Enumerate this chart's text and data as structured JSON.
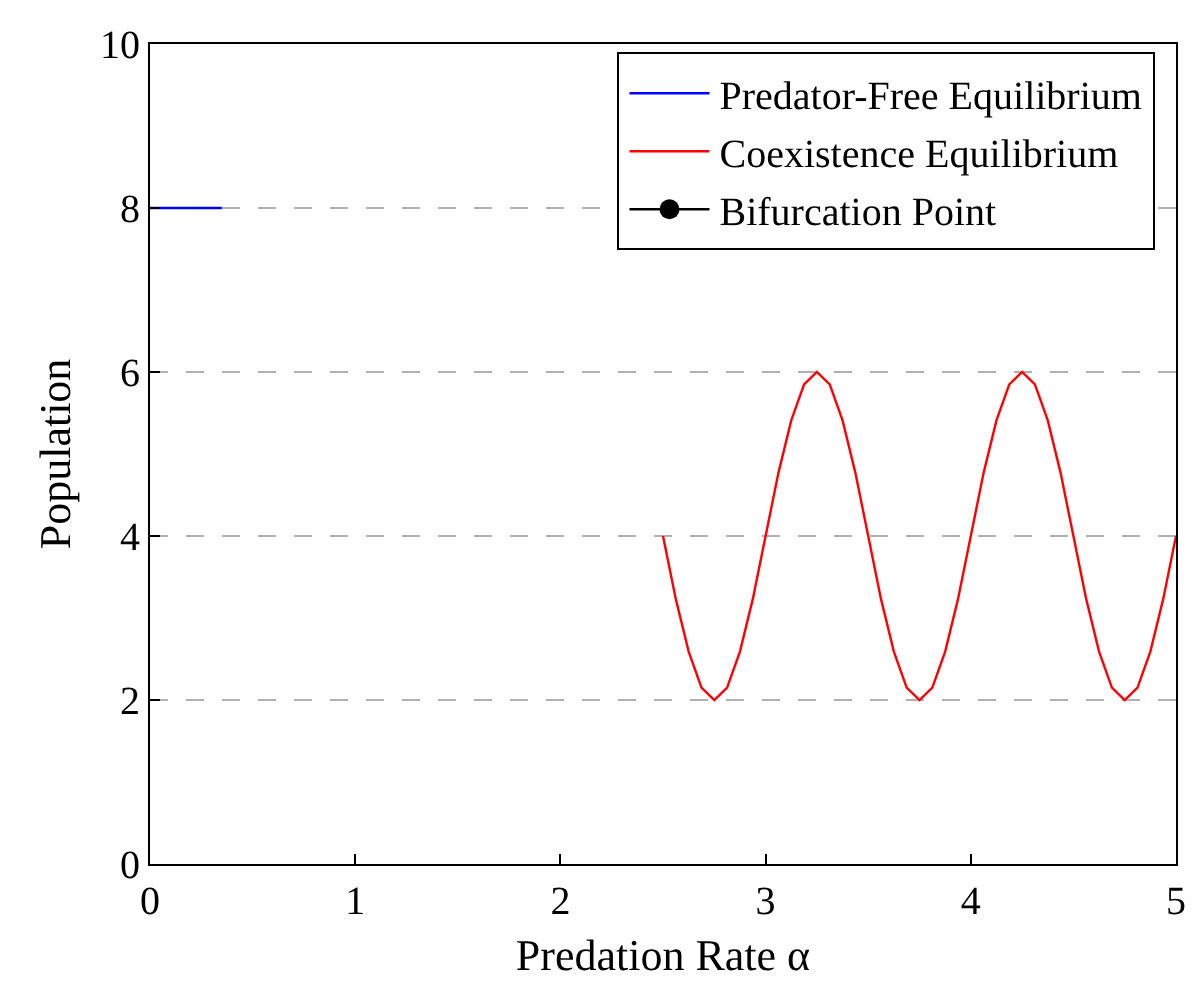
{
  "chart_data": {
    "type": "line",
    "xlabel": "Predation Rate α",
    "ylabel": "Population",
    "xlim": [
      0,
      5
    ],
    "ylim": [
      0,
      10
    ],
    "xticks": [
      0,
      1,
      2,
      3,
      4,
      5
    ],
    "yticks": [
      0,
      2,
      4,
      6,
      8,
      10
    ],
    "grid": "y",
    "legend": "top right",
    "marker": "none",
    "line_style": "solid",
    "series": [
      {
        "name": "Predator-Free Equilibrium",
        "color": "#0000ff",
        "x": [
          0,
          0.35
        ],
        "values": [
          8,
          8
        ]
      },
      {
        "name": "Coexistence Equilibrium",
        "color": "#ff0000",
        "x": [
          2.5,
          2.5625,
          2.625,
          2.6875,
          2.75,
          2.8125,
          2.875,
          2.9375,
          3,
          3.0625,
          3.125,
          3.1875,
          3.25,
          3.3125,
          3.375,
          3.4375,
          3.5,
          3.5625,
          3.625,
          3.6875,
          3.75,
          3.8125,
          3.875,
          3.9375,
          4,
          4.0625,
          4.125,
          4.1875,
          4.25,
          4.3125,
          4.375,
          4.4375,
          4.5,
          4.5625,
          4.625,
          4.6875,
          4.75,
          4.8125,
          4.875,
          4.9375,
          5
        ],
        "values": [
          4,
          3.23,
          2.59,
          2.15,
          2,
          2.15,
          2.59,
          3.23,
          4,
          4.77,
          5.41,
          5.85,
          6,
          5.85,
          5.41,
          4.77,
          4,
          3.23,
          2.59,
          2.15,
          2,
          2.15,
          2.59,
          3.23,
          4,
          4.77,
          5.41,
          5.85,
          6,
          5.85,
          5.41,
          4.77,
          4,
          3.23,
          2.59,
          2.15,
          2,
          2.15,
          2.59,
          3.23,
          4
        ]
      },
      {
        "name": "Bifurcation Point",
        "color": "#000000",
        "marker": "circle"
      }
    ]
  }
}
